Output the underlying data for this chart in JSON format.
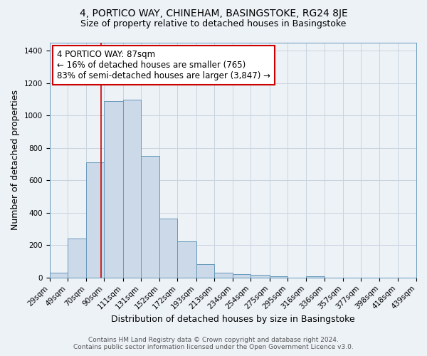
{
  "title": "4, PORTICO WAY, CHINEHAM, BASINGSTOKE, RG24 8JE",
  "subtitle": "Size of property relative to detached houses in Basingstoke",
  "xlabel": "Distribution of detached houses by size in Basingstoke",
  "ylabel": "Number of detached properties",
  "footer_line1": "Contains HM Land Registry data © Crown copyright and database right 2024.",
  "footer_line2": "Contains public sector information licensed under the Open Government Licence v3.0.",
  "bin_edges": [
    29,
    49,
    70,
    90,
    111,
    131,
    152,
    172,
    193,
    213,
    234,
    254,
    275,
    295,
    316,
    336,
    357,
    377,
    398,
    418,
    439
  ],
  "bar_heights": [
    30,
    240,
    710,
    1090,
    1100,
    750,
    365,
    225,
    85,
    30,
    20,
    15,
    10,
    0,
    10,
    0,
    0,
    0,
    0,
    0
  ],
  "bar_color": "#ccd9e8",
  "bar_edge_color": "#6699bb",
  "grid_color": "#c8d4e0",
  "property_line_x": 87,
  "property_line_color": "#cc0000",
  "annotation_line1": "4 PORTICO WAY: 87sqm",
  "annotation_line2": "← 16% of detached houses are smaller (765)",
  "annotation_line3": "83% of semi-detached houses are larger (3,847) →",
  "annotation_box_color": "#ffffff",
  "annotation_box_edge_color": "#cc0000",
  "ylim": [
    0,
    1450
  ],
  "yticks": [
    0,
    200,
    400,
    600,
    800,
    1000,
    1200,
    1400
  ],
  "background_color": "#edf2f7",
  "title_fontsize": 10,
  "subtitle_fontsize": 9,
  "axis_label_fontsize": 9,
  "tick_fontsize": 7.5,
  "annotation_fontsize": 8.5,
  "footer_fontsize": 6.5
}
